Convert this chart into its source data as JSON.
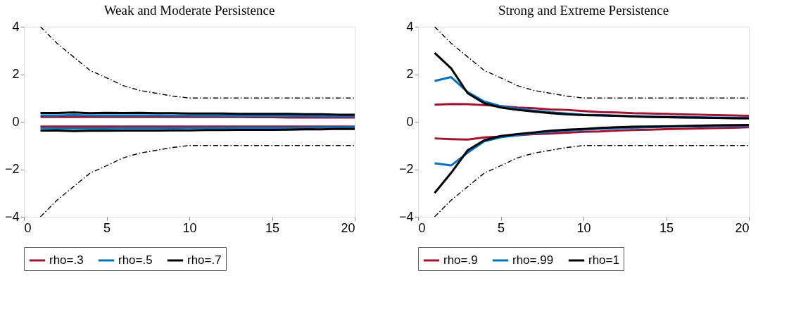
{
  "chart_data": [
    {
      "type": "line",
      "title": "Weak and Moderate Persistence",
      "xlim": [
        0,
        20
      ],
      "xticks": [
        0,
        5,
        10,
        15,
        20
      ],
      "ylim": [
        -4,
        4
      ],
      "yticks": [
        -4,
        -2,
        0,
        2,
        4
      ],
      "grid": false,
      "legend": "bottom",
      "marker": "none",
      "x": [
        1,
        2,
        3,
        4,
        5,
        6,
        7,
        8,
        9,
        10,
        11,
        12,
        13,
        14,
        15,
        16,
        17,
        18,
        19,
        20
      ],
      "series": [
        {
          "color": "#000000",
          "line_style": "dashed",
          "values": [
            4.0,
            3.3,
            2.73,
            2.16,
            1.85,
            1.52,
            1.32,
            1.2,
            1.08,
            1.0,
            1.0,
            1.0,
            1.0,
            1.0,
            1.0,
            1.0,
            1.0,
            1.0,
            1.0,
            1.0
          ]
        },
        {
          "color": "#000000",
          "line_style": "dashed",
          "values": [
            -4.0,
            -3.3,
            -2.73,
            -2.16,
            -1.85,
            -1.52,
            -1.32,
            -1.2,
            -1.08,
            -1.0,
            -1.0,
            -1.0,
            -1.0,
            -1.0,
            -1.0,
            -1.0,
            -1.0,
            -1.0,
            -1.0,
            -1.0
          ]
        },
        {
          "name": "rho=.3",
          "color": "#a2142f",
          "values": [
            0.2,
            0.2,
            0.2,
            0.2,
            0.2,
            0.2,
            0.2,
            0.2,
            0.2,
            0.2,
            0.2,
            0.2,
            0.2,
            0.19,
            0.19,
            0.18,
            0.18,
            0.18,
            0.18,
            0.18
          ]
        },
        {
          "color": "#a2142f",
          "values": [
            -0.2,
            -0.2,
            -0.2,
            -0.2,
            -0.2,
            -0.2,
            -0.2,
            -0.2,
            -0.2,
            -0.2,
            -0.2,
            -0.2,
            -0.2,
            -0.2,
            -0.2,
            -0.2,
            -0.2,
            -0.2,
            -0.2,
            -0.2
          ]
        },
        {
          "name": "rho=.5",
          "color": "#0072bd",
          "values": [
            0.27,
            0.27,
            0.28,
            0.27,
            0.27,
            0.27,
            0.27,
            0.27,
            0.26,
            0.26,
            0.26,
            0.26,
            0.25,
            0.25,
            0.25,
            0.25,
            0.25,
            0.24,
            0.24,
            0.24
          ]
        },
        {
          "color": "#0072bd",
          "values": [
            -0.27,
            -0.28,
            -0.28,
            -0.28,
            -0.28,
            -0.27,
            -0.27,
            -0.27,
            -0.27,
            -0.26,
            -0.26,
            -0.26,
            -0.25,
            -0.25,
            -0.25,
            -0.25,
            -0.25,
            -0.24,
            -0.24,
            -0.22
          ]
        },
        {
          "name": "rho=.7",
          "color": "#000000",
          "values": [
            0.37,
            0.37,
            0.39,
            0.36,
            0.38,
            0.37,
            0.38,
            0.36,
            0.36,
            0.35,
            0.35,
            0.35,
            0.33,
            0.33,
            0.33,
            0.33,
            0.32,
            0.32,
            0.3,
            0.3
          ]
        },
        {
          "color": "#000000",
          "values": [
            -0.37,
            -0.37,
            -0.39,
            -0.38,
            -0.38,
            -0.37,
            -0.37,
            -0.37,
            -0.36,
            -0.36,
            -0.35,
            -0.35,
            -0.34,
            -0.34,
            -0.34,
            -0.33,
            -0.32,
            -0.32,
            -0.3,
            -0.3
          ]
        }
      ]
    },
    {
      "type": "line",
      "title": "Strong and Extreme Persistence",
      "xlim": [
        0,
        20
      ],
      "xticks": [
        0,
        5,
        10,
        15,
        20
      ],
      "ylim": [
        -4,
        4
      ],
      "yticks": [
        -4,
        -2,
        0,
        2,
        4
      ],
      "grid": false,
      "legend": "bottom",
      "marker": "none",
      "x": [
        1,
        2,
        3,
        4,
        5,
        6,
        7,
        8,
        9,
        10,
        11,
        12,
        13,
        14,
        15,
        16,
        17,
        18,
        19,
        20
      ],
      "series": [
        {
          "color": "#000000",
          "line_style": "dashed",
          "values": [
            4.0,
            3.3,
            2.73,
            2.16,
            1.85,
            1.52,
            1.32,
            1.2,
            1.08,
            1.0,
            1.0,
            1.0,
            1.0,
            1.0,
            1.0,
            1.0,
            1.0,
            1.0,
            1.0,
            1.0
          ]
        },
        {
          "color": "#000000",
          "line_style": "dashed",
          "values": [
            -4.0,
            -3.3,
            -2.73,
            -2.16,
            -1.85,
            -1.52,
            -1.32,
            -1.2,
            -1.08,
            -1.0,
            -1.0,
            -1.0,
            -1.0,
            -1.0,
            -1.0,
            -1.0,
            -1.0,
            -1.0,
            -1.0,
            -1.0
          ]
        },
        {
          "name": "rho=.9",
          "color": "#a2142f",
          "values": [
            0.72,
            0.75,
            0.74,
            0.7,
            0.66,
            0.6,
            0.57,
            0.52,
            0.5,
            0.45,
            0.41,
            0.39,
            0.36,
            0.35,
            0.33,
            0.31,
            0.3,
            0.28,
            0.27,
            0.25
          ]
        },
        {
          "color": "#a2142f",
          "values": [
            -0.7,
            -0.73,
            -0.75,
            -0.66,
            -0.62,
            -0.57,
            -0.52,
            -0.5,
            -0.46,
            -0.42,
            -0.41,
            -0.37,
            -0.35,
            -0.33,
            -0.31,
            -0.3,
            -0.28,
            -0.27,
            -0.25,
            -0.23
          ]
        },
        {
          "name": "rho=.99",
          "color": "#0072bd",
          "values": [
            1.72,
            1.88,
            1.25,
            0.85,
            0.65,
            0.55,
            0.47,
            0.4,
            0.35,
            0.3,
            0.28,
            0.26,
            0.24,
            0.22,
            0.21,
            0.2,
            0.19,
            0.18,
            0.17,
            0.16
          ]
        },
        {
          "color": "#0072bd",
          "values": [
            -1.75,
            -1.84,
            -1.3,
            -0.82,
            -0.65,
            -0.56,
            -0.48,
            -0.42,
            -0.37,
            -0.33,
            -0.3,
            -0.27,
            -0.25,
            -0.23,
            -0.21,
            -0.2,
            -0.19,
            -0.18,
            -0.17,
            -0.16
          ]
        },
        {
          "name": "rho=1",
          "color": "#000000",
          "values": [
            2.9,
            2.25,
            1.2,
            0.78,
            0.6,
            0.5,
            0.43,
            0.36,
            0.31,
            0.28,
            0.27,
            0.25,
            0.22,
            0.2,
            0.19,
            0.18,
            0.17,
            0.16,
            0.15,
            0.14
          ]
        },
        {
          "color": "#000000",
          "values": [
            -3.0,
            -2.15,
            -1.2,
            -0.78,
            -0.6,
            -0.52,
            -0.45,
            -0.38,
            -0.33,
            -0.3,
            -0.26,
            -0.23,
            -0.21,
            -0.2,
            -0.19,
            -0.18,
            -0.16,
            -0.15,
            -0.14,
            -0.13
          ]
        }
      ]
    }
  ]
}
